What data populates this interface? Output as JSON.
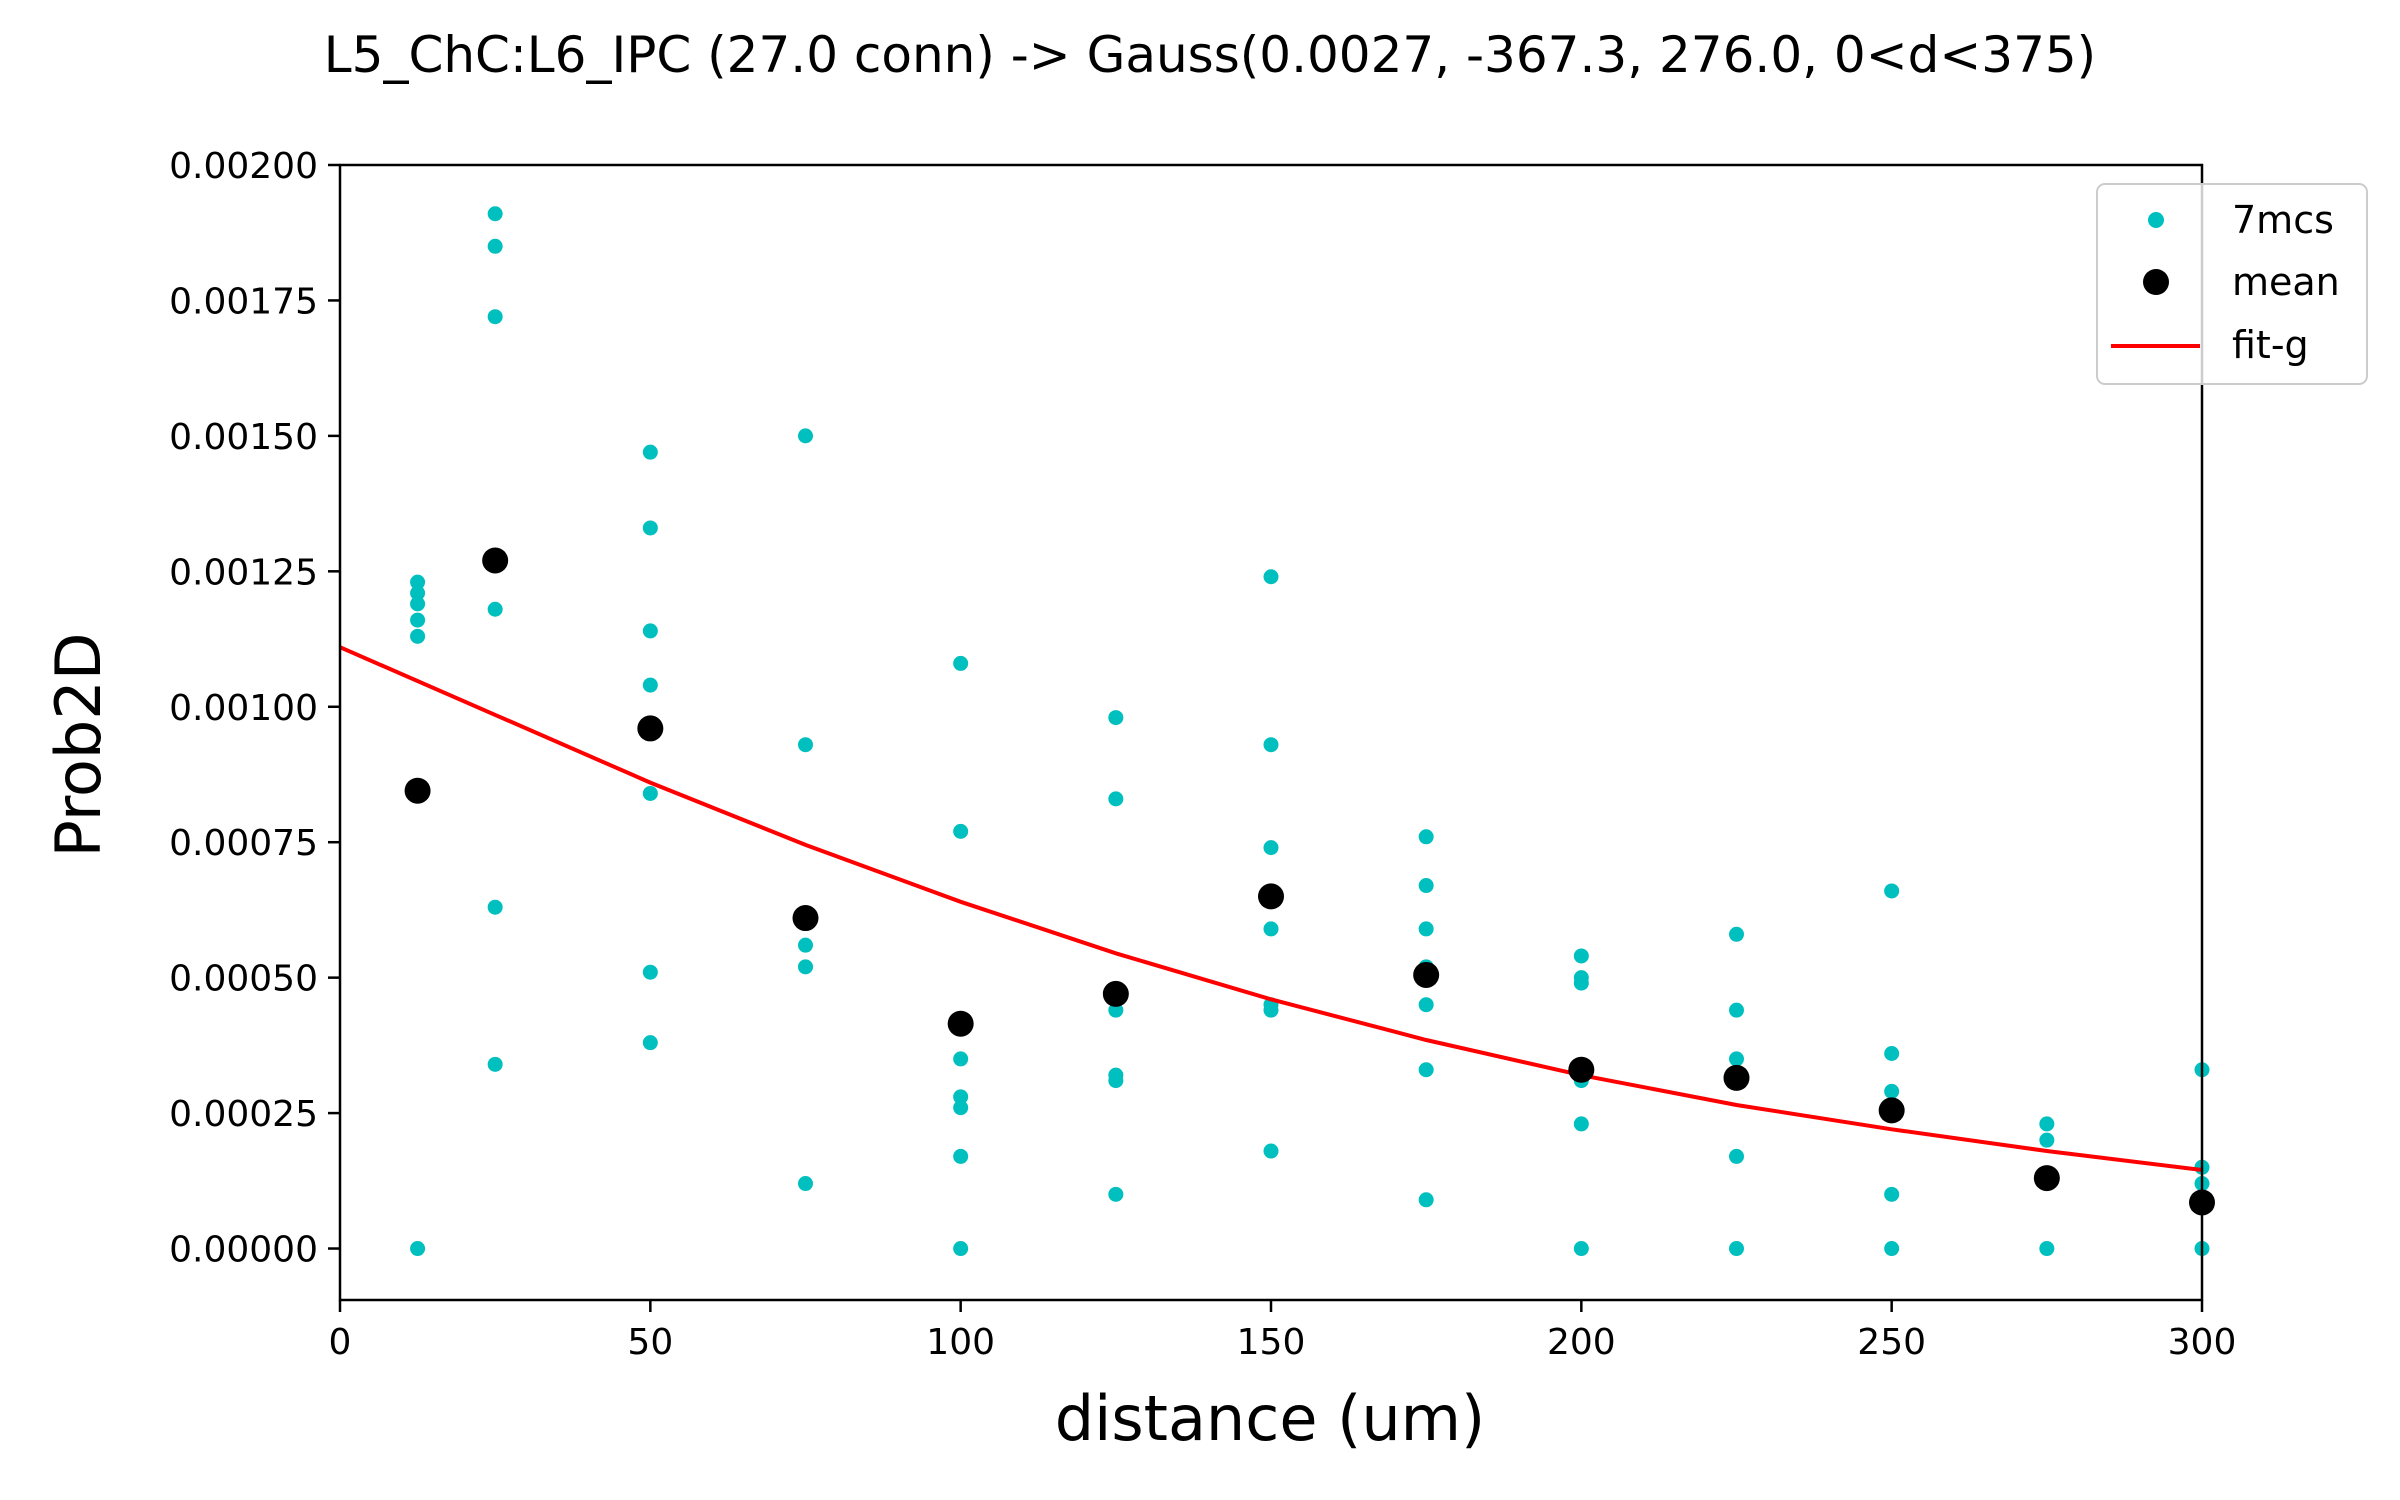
{
  "chart_data": {
    "type": "scatter",
    "title": "L5_ChC:L6_IPC (27.0 conn) -> Gauss(0.0027, -367.3, 276.0, 0<d<375)",
    "xlabel": "distance (um)",
    "ylabel": "Prob2D",
    "xlim": [
      0,
      300
    ],
    "ylim": [
      -9.5e-05,
      0.002
    ],
    "x_ticks": [
      0,
      50,
      100,
      150,
      200,
      250,
      300
    ],
    "x_tick_labels": [
      "0",
      "50",
      "100",
      "150",
      "200",
      "250",
      "300"
    ],
    "y_ticks": [
      0,
      0.00025,
      0.0005,
      0.00075,
      0.001,
      0.00125,
      0.0015,
      0.00175,
      0.002
    ],
    "y_tick_labels": [
      "0.00000",
      "0.00025",
      "0.00050",
      "0.00075",
      "0.00100",
      "0.00125",
      "0.00150",
      "0.00175",
      "0.00200"
    ],
    "grid": false,
    "legend_position": "top-right",
    "colors": {
      "samples": "#00bfbf",
      "mean": "#000000",
      "fit": "#ff0000"
    },
    "series": [
      {
        "name": "7mcs",
        "kind": "scatter",
        "points": [
          [
            12.5,
            0.00123
          ],
          [
            12.5,
            0.00121
          ],
          [
            12.5,
            0.00119
          ],
          [
            12.5,
            0.00116
          ],
          [
            12.5,
            0.00113
          ],
          [
            12.5,
            0.0
          ],
          [
            25,
            0.00191
          ],
          [
            25,
            0.00185
          ],
          [
            25,
            0.00172
          ],
          [
            25,
            0.00118
          ],
          [
            25,
            0.00063
          ],
          [
            25,
            0.00034
          ],
          [
            50,
            0.00147
          ],
          [
            50,
            0.00133
          ],
          [
            50,
            0.00114
          ],
          [
            50,
            0.00104
          ],
          [
            50,
            0.00084
          ],
          [
            50,
            0.00051
          ],
          [
            50,
            0.00038
          ],
          [
            75,
            0.0015
          ],
          [
            75,
            0.00093
          ],
          [
            75,
            0.00056
          ],
          [
            75,
            0.00052
          ],
          [
            75,
            0.00012
          ],
          [
            100,
            0.00108
          ],
          [
            100,
            0.00077
          ],
          [
            100,
            0.00035
          ],
          [
            100,
            0.00028
          ],
          [
            100,
            0.00026
          ],
          [
            100,
            0.00017
          ],
          [
            100,
            0.0
          ],
          [
            125,
            0.00098
          ],
          [
            125,
            0.00083
          ],
          [
            125,
            0.00044
          ],
          [
            125,
            0.00032
          ],
          [
            125,
            0.00031
          ],
          [
            125,
            0.0001
          ],
          [
            150,
            0.00124
          ],
          [
            150,
            0.00093
          ],
          [
            150,
            0.00074
          ],
          [
            150,
            0.00059
          ],
          [
            150,
            0.00045
          ],
          [
            150,
            0.00044
          ],
          [
            150,
            0.00018
          ],
          [
            175,
            0.00076
          ],
          [
            175,
            0.00067
          ],
          [
            175,
            0.00059
          ],
          [
            175,
            0.00052
          ],
          [
            175,
            0.00045
          ],
          [
            175,
            0.00033
          ],
          [
            175,
            9e-05
          ],
          [
            200,
            0.00054
          ],
          [
            200,
            0.0005
          ],
          [
            200,
            0.00049
          ],
          [
            200,
            0.00031
          ],
          [
            200,
            0.00023
          ],
          [
            200,
            0.0
          ],
          [
            225,
            0.00058
          ],
          [
            225,
            0.00044
          ],
          [
            225,
            0.00035
          ],
          [
            225,
            0.00017
          ],
          [
            225,
            0.0
          ],
          [
            250,
            0.00066
          ],
          [
            250,
            0.00036
          ],
          [
            250,
            0.00029
          ],
          [
            250,
            0.0001
          ],
          [
            250,
            0.0
          ],
          [
            275,
            0.00023
          ],
          [
            275,
            0.0002
          ],
          [
            275,
            0.0
          ],
          [
            300,
            0.00033
          ],
          [
            300,
            0.00015
          ],
          [
            300,
            0.00012
          ],
          [
            300,
            0.0
          ]
        ]
      },
      {
        "name": "mean",
        "kind": "scatter",
        "points": [
          [
            12.5,
            0.000845
          ],
          [
            25,
            0.00127
          ],
          [
            50,
            0.00096
          ],
          [
            75,
            0.00061
          ],
          [
            100,
            0.000415
          ],
          [
            125,
            0.00047
          ],
          [
            150,
            0.00065
          ],
          [
            175,
            0.000505
          ],
          [
            200,
            0.00033
          ],
          [
            225,
            0.000315
          ],
          [
            250,
            0.000255
          ],
          [
            275,
            0.00013
          ],
          [
            300,
            8.5e-05
          ]
        ]
      },
      {
        "name": "fit-g",
        "kind": "line",
        "points": [
          [
            0,
            0.00111
          ],
          [
            25,
            0.000985
          ],
          [
            50,
            0.00086
          ],
          [
            75,
            0.000745
          ],
          [
            100,
            0.00064
          ],
          [
            125,
            0.000545
          ],
          [
            150,
            0.00046
          ],
          [
            175,
            0.000385
          ],
          [
            200,
            0.00032
          ],
          [
            225,
            0.000265
          ],
          [
            250,
            0.00022
          ],
          [
            275,
            0.00018
          ],
          [
            300,
            0.000145
          ]
        ]
      }
    ]
  }
}
